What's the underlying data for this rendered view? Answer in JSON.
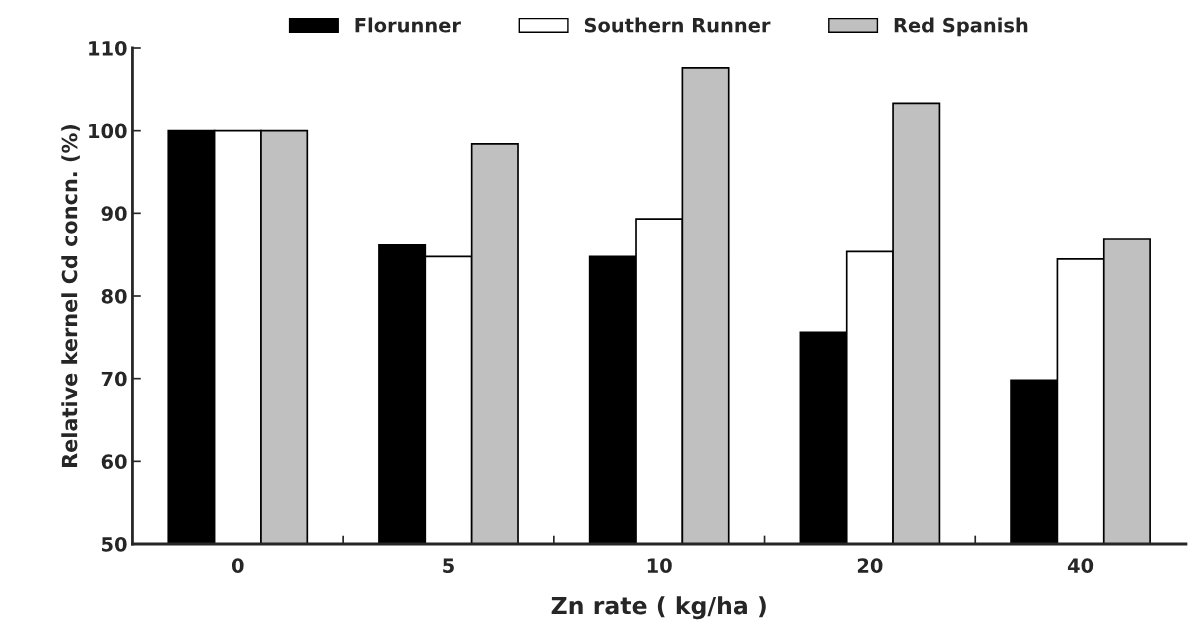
{
  "chart_data": {
    "type": "bar",
    "xlabel": "Zn rate ( kg/ha )",
    "ylabel": "Relative kernel Cd concn. (%)",
    "categories": [
      "0",
      "5",
      "10",
      "20",
      "40"
    ],
    "series": [
      {
        "name": "Florunner",
        "color": "#000000",
        "values": [
          100,
          86.2,
          84.8,
          75.6,
          69.8
        ]
      },
      {
        "name": "Southern Runner",
        "color": "#ffffff",
        "values": [
          100,
          84.8,
          89.3,
          85.4,
          84.5
        ]
      },
      {
        "name": "Red Spanish",
        "color": "#c0c0c0",
        "values": [
          100,
          98.4,
          107.6,
          103.3,
          86.9
        ]
      }
    ],
    "ylim": [
      50,
      110
    ],
    "yticks": [
      50,
      60,
      70,
      80,
      90,
      100,
      110
    ],
    "grid": false,
    "legend": "top"
  }
}
